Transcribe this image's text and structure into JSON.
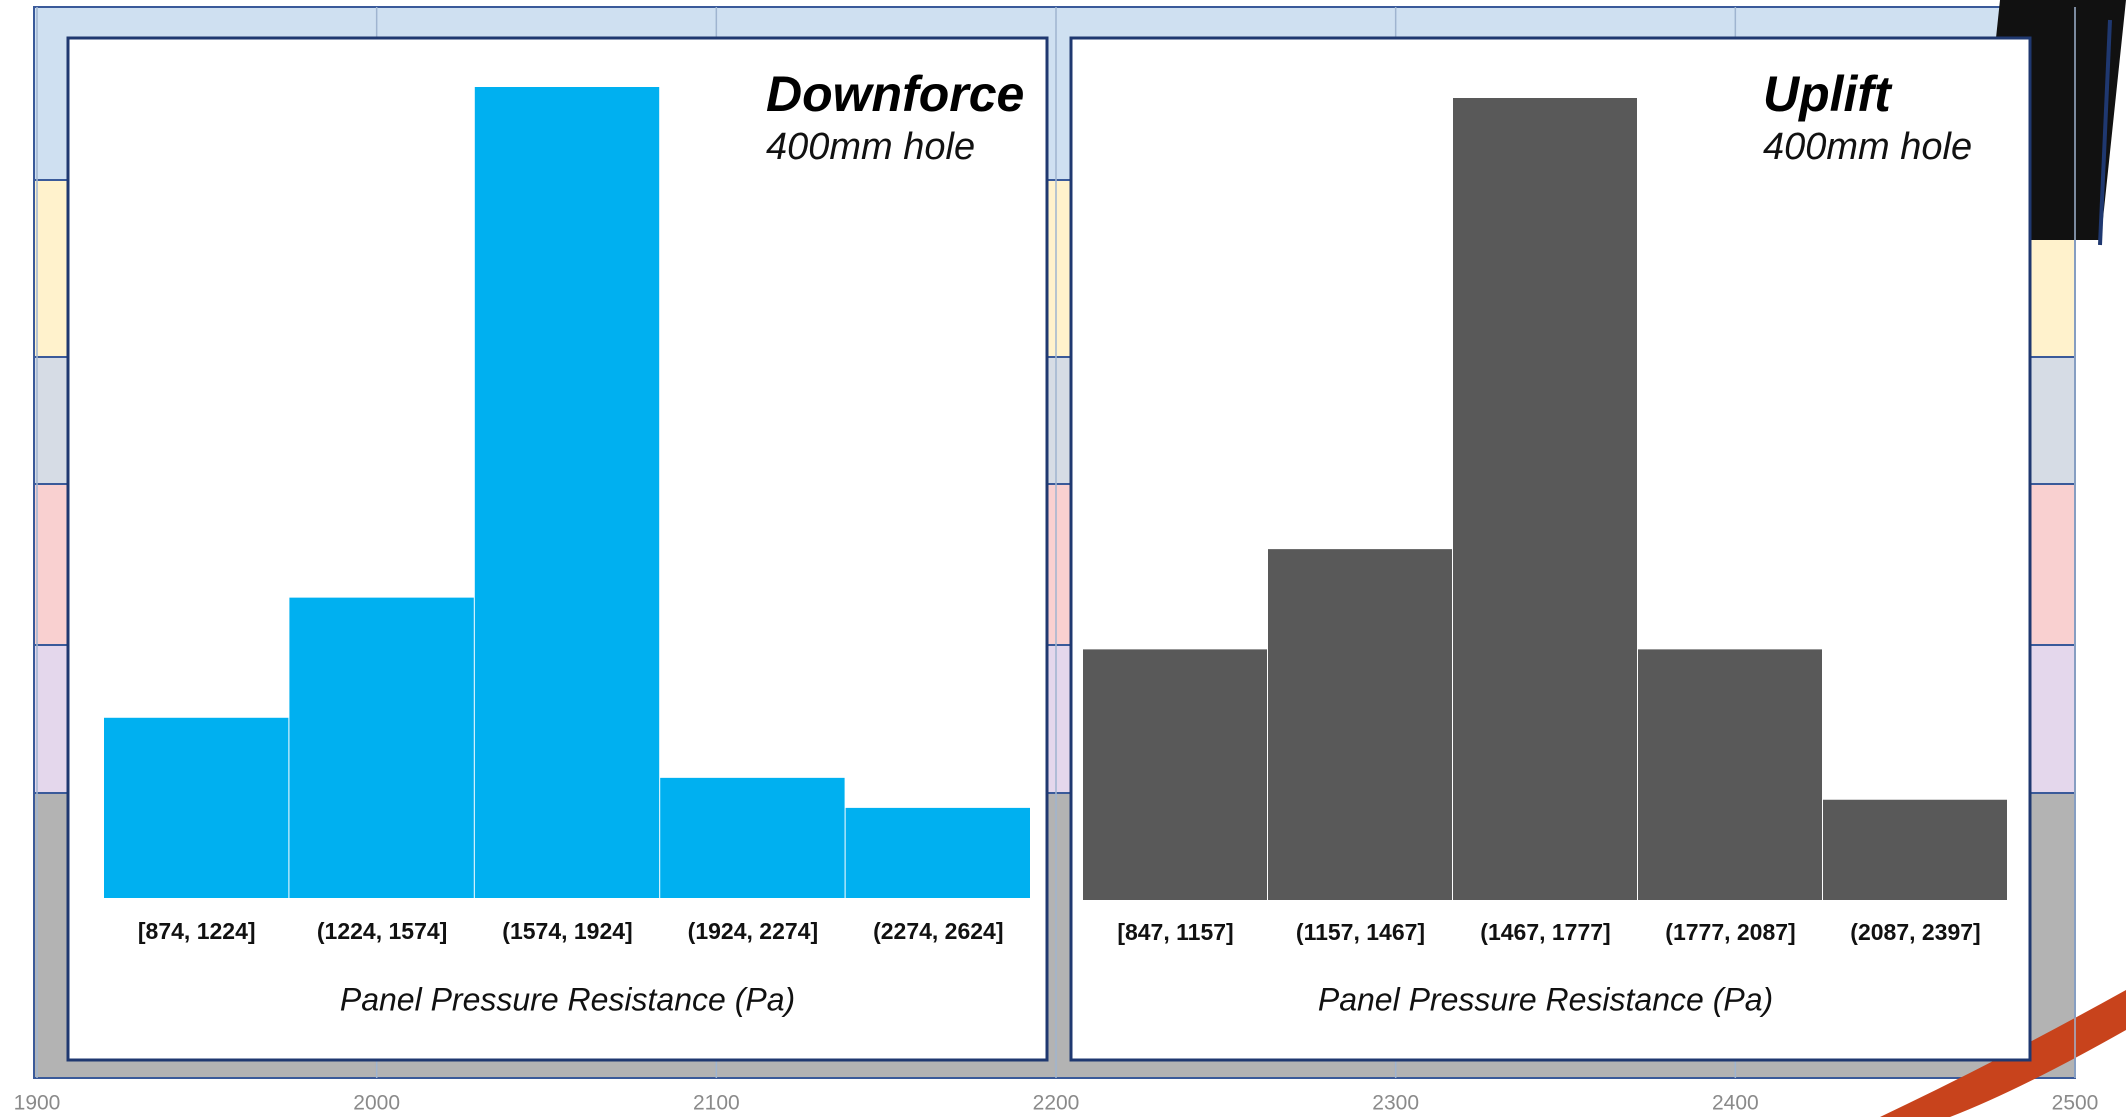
{
  "chart_data": [
    {
      "type": "bands",
      "xlim": [
        1900,
        2500
      ],
      "xticks": [
        1900,
        2000,
        2100,
        2200,
        2300,
        2400,
        2500
      ]
    },
    {
      "type": "bar",
      "title": "Downforce",
      "subtitle": "400mm hole",
      "x_label": "Panel Pressure Resistance (Pa)",
      "categories": [
        "[874, 1224]",
        "(1224, 1574]",
        "(1574, 1924]",
        "(1924, 2274]",
        "(2274, 2624]"
      ],
      "values": [
        6,
        10,
        27,
        4,
        3
      ],
      "color": "#00b0f0"
    },
    {
      "type": "bar",
      "title": "Uplift",
      "subtitle": "400mm hole",
      "x_label": "Panel Pressure Resistance (Pa)",
      "categories": [
        "[847, 1157]",
        "(1157, 1467]",
        "(1467, 1777]",
        "(1777, 2087]",
        "(2087, 2397]"
      ],
      "values": [
        5,
        7,
        16,
        5,
        2
      ],
      "color": "#595959"
    }
  ]
}
